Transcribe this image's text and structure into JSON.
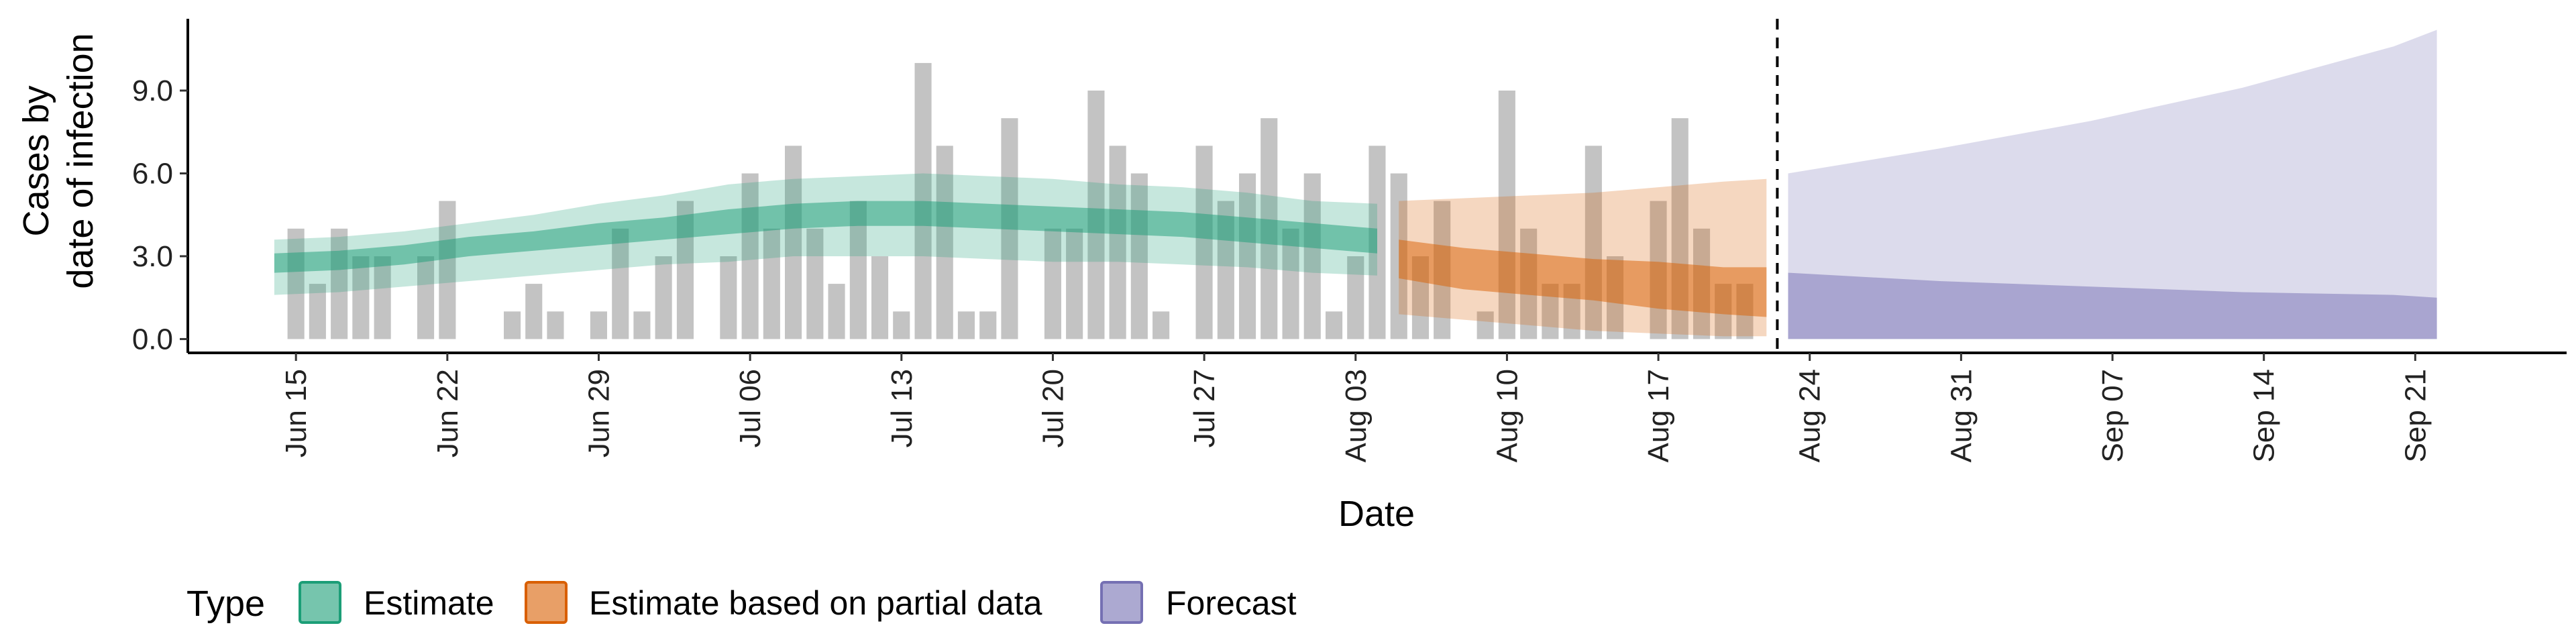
{
  "chart_data": {
    "type": "area",
    "xlabel": "Date",
    "ylabel_lines": [
      "Cases by",
      "date of infection"
    ],
    "y_ticks": [
      0,
      3,
      6,
      9
    ],
    "y_tick_labels": [
      "0.0",
      "3.0",
      "6.0",
      "9.0"
    ],
    "ylim": [
      -0.5,
      11.6
    ],
    "x_range": [
      "2020-06-10",
      "2020-09-28"
    ],
    "x_ticks": [
      "2020-06-15",
      "2020-06-22",
      "2020-06-29",
      "2020-07-06",
      "2020-07-13",
      "2020-07-20",
      "2020-07-27",
      "2020-08-03",
      "2020-08-10",
      "2020-08-17",
      "2020-08-24",
      "2020-08-31",
      "2020-09-07",
      "2020-09-14",
      "2020-09-21"
    ],
    "x_tick_labels": [
      "Jun 15",
      "Jun 22",
      "Jun 29",
      "Jul 06",
      "Jul 13",
      "Jul 20",
      "Jul 27",
      "Aug 03",
      "Aug 10",
      "Aug 17",
      "Aug 24",
      "Aug 31",
      "Sep 07",
      "Sep 14",
      "Sep 21"
    ],
    "forecast_cutoff_date": "2020-08-23",
    "colors": {
      "Estimate": "#1b9e77",
      "Estimate based on partial data": "#d95f02",
      "Forecast": "#7570b3",
      "bars": "#bdbdbd",
      "axis": "#000000"
    },
    "observed_cases": {
      "dates": [
        "2020-06-15",
        "2020-06-16",
        "2020-06-17",
        "2020-06-18",
        "2020-06-19",
        "2020-06-20",
        "2020-06-21",
        "2020-06-22",
        "2020-06-23",
        "2020-06-24",
        "2020-06-25",
        "2020-06-26",
        "2020-06-27",
        "2020-06-28",
        "2020-06-29",
        "2020-06-30",
        "2020-07-01",
        "2020-07-02",
        "2020-07-03",
        "2020-07-04",
        "2020-07-05",
        "2020-07-06",
        "2020-07-07",
        "2020-07-08",
        "2020-07-09",
        "2020-07-10",
        "2020-07-11",
        "2020-07-12",
        "2020-07-13",
        "2020-07-14",
        "2020-07-15",
        "2020-07-16",
        "2020-07-17",
        "2020-07-18",
        "2020-07-19",
        "2020-07-20",
        "2020-07-21",
        "2020-07-22",
        "2020-07-23",
        "2020-07-24",
        "2020-07-25",
        "2020-07-26",
        "2020-07-27",
        "2020-07-28",
        "2020-07-29",
        "2020-07-30",
        "2020-07-31",
        "2020-08-01",
        "2020-08-02",
        "2020-08-03",
        "2020-08-04",
        "2020-08-05",
        "2020-08-06",
        "2020-08-07",
        "2020-08-08",
        "2020-08-09",
        "2020-08-10",
        "2020-08-11",
        "2020-08-12",
        "2020-08-13",
        "2020-08-14",
        "2020-08-15",
        "2020-08-16",
        "2020-08-17",
        "2020-08-18",
        "2020-08-19",
        "2020-08-20",
        "2020-08-21",
        "2020-08-22"
      ],
      "values": [
        4,
        2,
        4,
        3,
        3,
        0,
        3,
        5,
        0,
        0,
        1,
        2,
        1,
        0,
        1,
        4,
        1,
        3,
        5,
        0,
        3,
        6,
        4,
        7,
        4,
        2,
        5,
        3,
        1,
        10,
        7,
        1,
        1,
        8,
        0,
        4,
        4,
        9,
        7,
        6,
        1,
        0,
        7,
        5,
        6,
        8,
        4,
        6,
        1,
        3,
        7,
        6,
        3,
        5,
        0,
        1,
        9,
        4,
        2,
        2,
        7,
        3,
        0,
        5,
        8,
        4,
        2,
        2,
        0
      ]
    },
    "series": [
      {
        "name": "Estimate",
        "dates": [
          "2020-06-14",
          "2020-06-17",
          "2020-06-20",
          "2020-06-23",
          "2020-06-26",
          "2020-06-29",
          "2020-07-02",
          "2020-07-05",
          "2020-07-08",
          "2020-07-11",
          "2020-07-14",
          "2020-07-17",
          "2020-07-20",
          "2020-07-23",
          "2020-07-26",
          "2020-07-29",
          "2020-08-01",
          "2020-08-04"
        ],
        "lower_90": [
          1.6,
          1.7,
          1.9,
          2.1,
          2.3,
          2.5,
          2.7,
          2.8,
          3.0,
          3.0,
          3.0,
          2.9,
          2.8,
          2.8,
          2.7,
          2.6,
          2.4,
          2.3
        ],
        "upper_90": [
          3.6,
          3.7,
          3.9,
          4.2,
          4.5,
          4.9,
          5.2,
          5.6,
          5.8,
          5.9,
          6.0,
          5.9,
          5.8,
          5.6,
          5.5,
          5.3,
          5.0,
          4.9
        ],
        "lower_50": [
          2.4,
          2.5,
          2.7,
          3.0,
          3.2,
          3.4,
          3.6,
          3.8,
          4.0,
          4.1,
          4.1,
          4.0,
          3.9,
          3.8,
          3.7,
          3.5,
          3.3,
          3.1
        ],
        "upper_50": [
          3.1,
          3.2,
          3.4,
          3.7,
          3.9,
          4.2,
          4.4,
          4.7,
          4.9,
          5.0,
          5.0,
          4.9,
          4.8,
          4.7,
          4.6,
          4.4,
          4.2,
          4.0
        ]
      },
      {
        "name": "Estimate based on partial data",
        "dates": [
          "2020-08-05",
          "2020-08-08",
          "2020-08-11",
          "2020-08-14",
          "2020-08-17",
          "2020-08-20",
          "2020-08-22"
        ],
        "lower_90": [
          0.9,
          0.7,
          0.5,
          0.3,
          0.2,
          0.1,
          0.1
        ],
        "upper_90": [
          5.0,
          5.1,
          5.2,
          5.3,
          5.5,
          5.7,
          5.8
        ],
        "lower_50": [
          2.2,
          1.8,
          1.6,
          1.4,
          1.1,
          0.9,
          0.8
        ],
        "upper_50": [
          3.6,
          3.3,
          3.1,
          2.9,
          2.8,
          2.6,
          2.6
        ]
      },
      {
        "name": "Forecast",
        "dates": [
          "2020-08-23",
          "2020-08-30",
          "2020-09-06",
          "2020-09-13",
          "2020-09-20",
          "2020-09-22"
        ],
        "lower_90": [
          0,
          0,
          0,
          0,
          0,
          0
        ],
        "upper_90": [
          6.0,
          6.9,
          7.9,
          9.1,
          10.6,
          11.2
        ],
        "lower_50": [
          0,
          0,
          0,
          0,
          0,
          0
        ],
        "upper_50": [
          2.4,
          2.1,
          1.9,
          1.7,
          1.6,
          1.5
        ]
      }
    ],
    "legend": {
      "title": "Type",
      "position": "bottom-left",
      "entries": [
        "Estimate",
        "Estimate based on partial data",
        "Forecast"
      ]
    }
  }
}
